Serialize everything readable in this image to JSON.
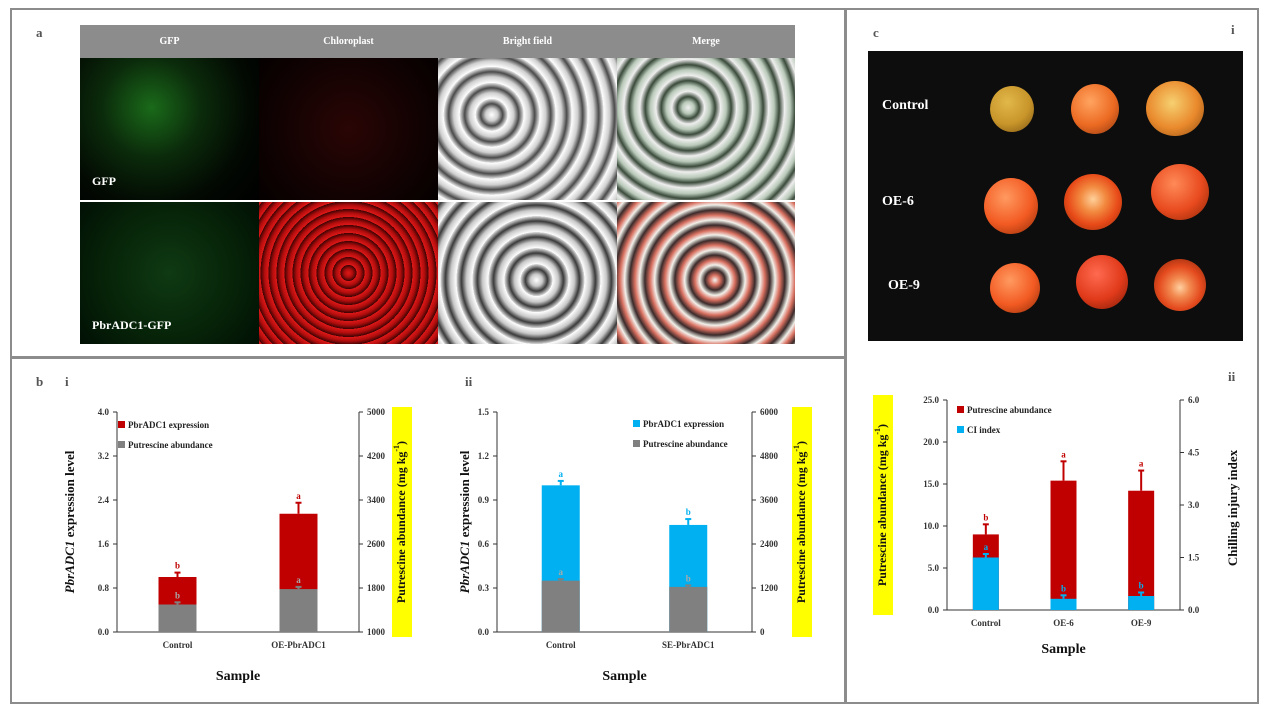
{
  "panel_a": {
    "label": "a",
    "column_headers": [
      "GFP",
      "Chloroplast",
      "Bright field",
      "Merge"
    ],
    "row_labels": [
      "GFP",
      "PbrADC1-GFP"
    ]
  },
  "panel_b": {
    "label": "b"
  },
  "panel_c": {
    "label": "c",
    "sub_i": "i",
    "sub_ii": "ii",
    "photo_rows": [
      "Control",
      "OE-6",
      "OE-9"
    ]
  },
  "colors": {
    "red": "#c00000",
    "blue": "#00b0f0",
    "gray": "#808080",
    "highlight": "#ffff00"
  },
  "chart_data": [
    {
      "id": "b-i",
      "type": "bar",
      "sublabel": "i",
      "stacked": true,
      "categories": [
        "Control",
        "OE-PbrADC1"
      ],
      "series": [
        {
          "name": "PbrADC1 expression",
          "values": [
            1.0,
            2.15
          ],
          "errors": [
            0.08,
            0.2
          ],
          "letters": [
            "b",
            "a"
          ],
          "color": "#c00000",
          "axis": "left"
        },
        {
          "name": "Putrescine abundance",
          "values": [
            1500,
            1780
          ],
          "errors": [
            40,
            40
          ],
          "letters": [
            "b",
            "a"
          ],
          "color": "#808080",
          "axis": "right"
        }
      ],
      "xlabel": "Sample",
      "ylabel_italic": "PbrADC1",
      "ylabel_rest": " expression level",
      "ylim": [
        0,
        4.0
      ],
      "yticks": [
        "0.0",
        "0.8",
        "1.6",
        "2.4",
        "3.2",
        "4.0"
      ],
      "y2label": "Putrescine abundance (mg kg",
      "y2label_sup": "-1",
      "y2label_end": ")",
      "y2lim": [
        1000,
        5000
      ],
      "y2ticks": [
        "1000",
        "1800",
        "2600",
        "3400",
        "4200",
        "5000"
      ],
      "legend_position": "top-left"
    },
    {
      "id": "b-ii",
      "type": "bar",
      "sublabel": "ii",
      "stacked": false,
      "categories": [
        "Control",
        "SE-PbrADC1"
      ],
      "series": [
        {
          "name": "PbrADC1 expression",
          "values": [
            1.0,
            0.73
          ],
          "errors": [
            0.03,
            0.04
          ],
          "letters": [
            "a",
            "b"
          ],
          "color": "#00b0f0",
          "axis": "left"
        },
        {
          "name": "Putrescine abundance",
          "values": [
            1400,
            1230
          ],
          "errors": [
            40,
            40
          ],
          "letters": [
            "a",
            "b"
          ],
          "color": "#808080",
          "axis": "right"
        }
      ],
      "xlabel": "Sample",
      "ylabel_italic": "PbrADC1",
      "ylabel_rest": " expression level",
      "ylim": [
        0,
        1.5
      ],
      "yticks": [
        "0.0",
        "0.3",
        "0.6",
        "0.9",
        "1.2",
        "1.5"
      ],
      "y2label": "Putrescine abundance (mg kg",
      "y2label_sup": "-1",
      "y2label_end": ")",
      "y2lim": [
        0,
        6000
      ],
      "y2ticks": [
        "0",
        "1200",
        "2400",
        "3600",
        "4800",
        "6000"
      ],
      "legend_position": "top-right"
    },
    {
      "id": "c-ii",
      "type": "bar",
      "sublabel": "ii",
      "stacked": false,
      "categories": [
        "Control",
        "OE-6",
        "OE-9"
      ],
      "series": [
        {
          "name": "Putrescine abundance",
          "values": [
            9.0,
            15.4,
            14.2
          ],
          "errors": [
            1.2,
            2.3,
            2.4
          ],
          "letters": [
            "b",
            "a",
            "a"
          ],
          "color": "#c00000",
          "axis": "left"
        },
        {
          "name": "CI index",
          "values": [
            1.5,
            0.32,
            0.4
          ],
          "errors": [
            0.1,
            0.1,
            0.1
          ],
          "letters": [
            "a",
            "b",
            "b"
          ],
          "color": "#00b0f0",
          "axis": "right"
        }
      ],
      "xlabel": "Sample",
      "ylabel": "Putrescine abundance (mg kg",
      "ylabel_sup": "-1",
      "ylabel_end": ")",
      "ylim": [
        0,
        25
      ],
      "yticks": [
        "0.0",
        "5.0",
        "10.0",
        "15.0",
        "20.0",
        "25.0"
      ],
      "y2label": "Chilling injury index",
      "y2lim": [
        0,
        6
      ],
      "y2ticks": [
        "0.0",
        "1.5",
        "3.0",
        "4.5",
        "6.0"
      ],
      "legend_position": "top-left"
    }
  ]
}
